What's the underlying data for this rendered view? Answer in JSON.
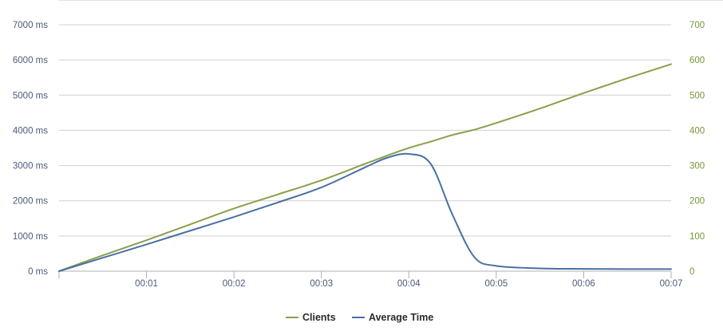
{
  "chart_data": {
    "type": "line",
    "x": [
      "00:00",
      "00:00.5",
      "00:01",
      "00:01.5",
      "00:02",
      "00:02.5",
      "00:03",
      "00:03.5",
      "00:03.75",
      "00:04",
      "00:04.25",
      "00:04.5",
      "00:04.75",
      "00:05",
      "00:05.5",
      "00:06",
      "00:06.5",
      "00:07"
    ],
    "x_ticks": [
      "00:01",
      "00:02",
      "00:03",
      "00:04",
      "00:05",
      "00:06",
      "00:07"
    ],
    "y_left": {
      "ticks": [
        "0 ms",
        "1000 ms",
        "2000 ms",
        "3000 ms",
        "4000 ms",
        "5000 ms",
        "6000 ms",
        "7000 ms"
      ],
      "ylim": [
        0,
        7000
      ],
      "unit": "ms"
    },
    "y_right": {
      "ticks": [
        "0",
        "100",
        "200",
        "300",
        "400",
        "500",
        "600",
        "700"
      ],
      "ylim": [
        0,
        700
      ]
    },
    "grid": true,
    "legend_position": "bottom-center",
    "series": [
      {
        "name": "Clients",
        "axis": "right",
        "color": "#8aa04a",
        "values": [
          0,
          45,
          88,
          133,
          178,
          218,
          258,
          305,
          328,
          350,
          368,
          387,
          402,
          421,
          462,
          506,
          548,
          588
        ]
      },
      {
        "name": "Average Time",
        "axis": "left",
        "color": "#4a6fa5",
        "values": [
          0,
          380,
          760,
          1150,
          1540,
          1950,
          2380,
          2950,
          3220,
          3330,
          3050,
          1600,
          400,
          150,
          80,
          65,
          60,
          60
        ]
      }
    ]
  }
}
